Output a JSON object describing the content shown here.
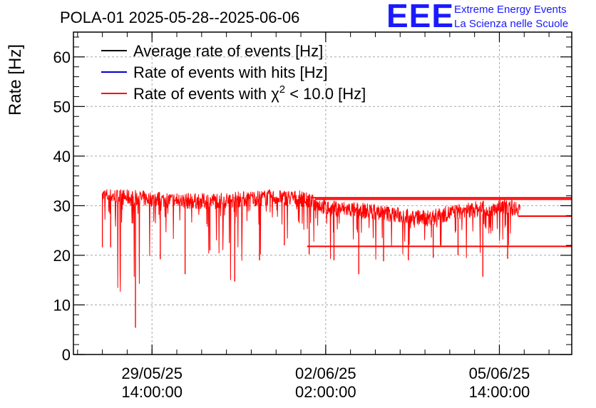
{
  "title": "POLA-01 2025-05-28--2025-06-06",
  "logo": {
    "mark": "EEE",
    "line1": "Extreme Energy Events",
    "line2": "La Scienza nelle Scuole"
  },
  "chart_data": {
    "type": "line",
    "ylabel": "Rate [Hz]",
    "xlabel": "",
    "ylim": [
      0,
      65
    ],
    "yticks": [
      0,
      10,
      20,
      30,
      40,
      50,
      60
    ],
    "xlim_hours": [
      0,
      241
    ],
    "xticks": [
      {
        "date": "29/05/25",
        "time": "14:00:00"
      },
      {
        "date": "02/06/25",
        "time": "02:00:00"
      },
      {
        "date": "05/06/25",
        "time": "14:00:00"
      }
    ],
    "grid": true,
    "legend_position": "top-left",
    "series": [
      {
        "name": "Average rate of events [Hz]",
        "color": "#000000"
      },
      {
        "name": "Rate of events with hits [Hz]",
        "color": "#0000cc"
      },
      {
        "name": "Rate of events with χ² < 10.0 [Hz]",
        "name_prefix": "Rate of events with χ",
        "name_sup": "2",
        "name_suffix": " < 10.0 [Hz]",
        "color": "#ff0000"
      }
    ],
    "x": [
      "05/28 15:00",
      "05/29 03:00",
      "05/29 15:00",
      "05/30 03:00",
      "05/30 15:00",
      "05/31 03:00",
      "05/31 15:00",
      "06/01 03:00",
      "06/01 15:00",
      "06/02 03:00",
      "06/02 15:00",
      "06/03 03:00",
      "06/03 15:00",
      "06/04 03:00",
      "06/04 15:00",
      "06/05 03:00",
      "06/05 15:00"
    ],
    "values_mean": [
      32.0,
      31.6,
      31.3,
      31.0,
      30.9,
      31.1,
      31.5,
      31.7,
      31.4,
      29.5,
      29.2,
      28.7,
      28.0,
      27.4,
      28.6,
      29.3,
      29.6
    ],
    "values_dips": [
      21.6,
      5.4,
      19.2,
      16.2,
      21.0,
      14.7,
      19.0,
      22.0,
      20.2,
      19.0,
      16.2,
      18.8,
      19.0,
      19.5,
      20.0,
      15.7,
      19.3
    ],
    "flat_segments": [
      {
        "y": 31.6,
        "from": "06/01 19:00"
      },
      {
        "y": 31.3,
        "from": "06/01 21:00"
      },
      {
        "y": 27.9,
        "from": "06/05 23:00"
      },
      {
        "y": 21.8,
        "from": "06/01 17:00"
      }
    ]
  }
}
